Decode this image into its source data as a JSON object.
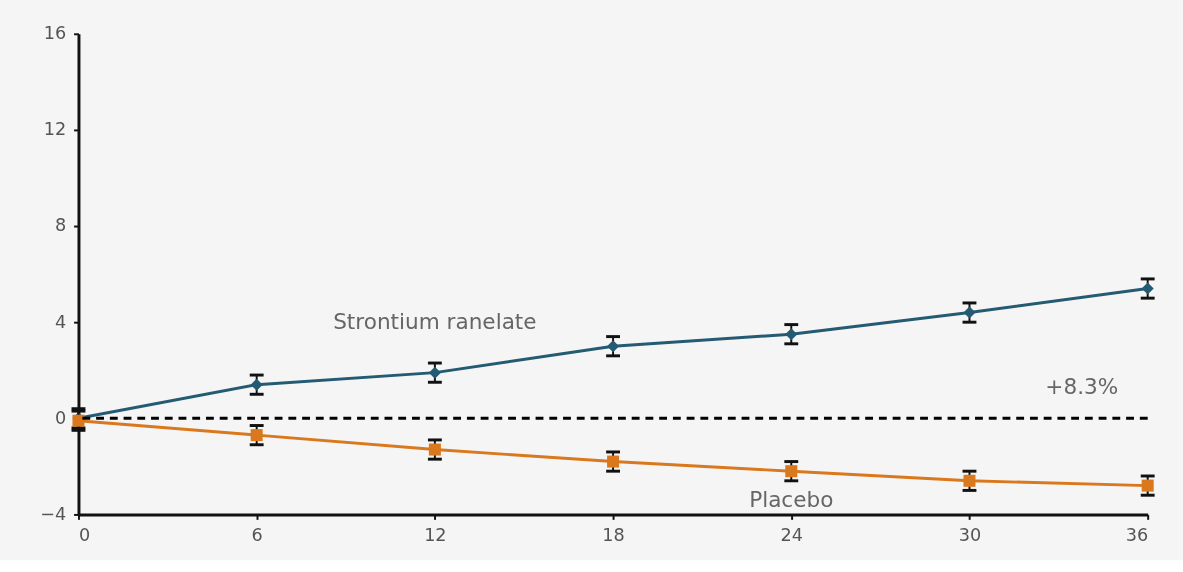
{
  "chart_data": {
    "type": "line",
    "x": [
      0,
      6,
      12,
      18,
      24,
      30,
      36
    ],
    "series": [
      {
        "name": "Strontium ranelate",
        "color": "#245a72",
        "marker": "diamond",
        "values": [
          0,
          1.4,
          1.9,
          3.0,
          3.5,
          4.4,
          5.4
        ],
        "errors": [
          0.4,
          0.4,
          0.4,
          0.4,
          0.4,
          0.4,
          0.4
        ]
      },
      {
        "name": "Placebo",
        "color": "#d9781c",
        "marker": "square",
        "values": [
          -0.1,
          -0.7,
          -1.3,
          -1.8,
          -2.2,
          -2.6,
          -2.8
        ],
        "errors": [
          0.4,
          0.4,
          0.4,
          0.4,
          0.4,
          0.4,
          0.4
        ]
      }
    ],
    "xlim": [
      0,
      36
    ],
    "xticks": [
      0,
      6,
      12,
      18,
      24,
      30,
      36
    ],
    "ylim": [
      -4,
      16
    ],
    "yticks": [
      -4,
      0,
      4,
      8,
      12,
      16
    ],
    "ref_lines": [
      {
        "axis": "y",
        "value": 0,
        "color": "#000000",
        "line_style": "dashed"
      }
    ],
    "annotations": [
      "+8.3%"
    ],
    "grid": false,
    "legend": false
  }
}
